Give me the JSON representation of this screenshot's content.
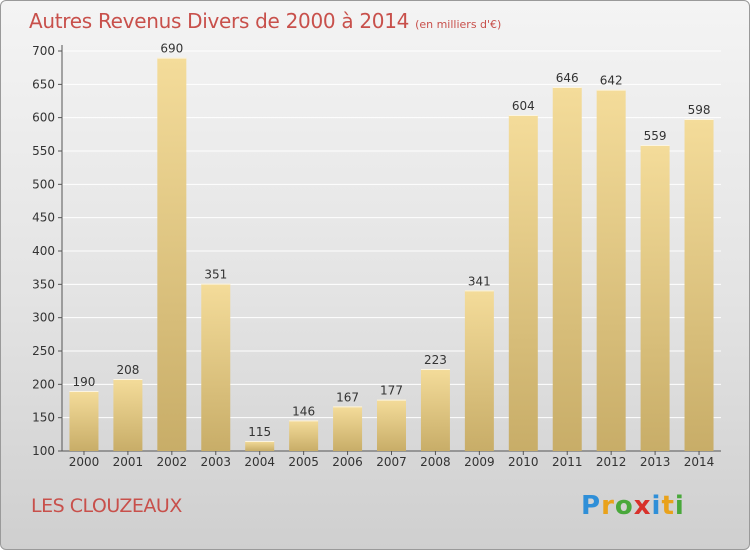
{
  "title": "Autres Revenus Divers de 2000 à 2014",
  "unit_label": "(en milliers d'€)",
  "commune": "LES CLOUZEAUX",
  "logo": {
    "text": "Proxiti",
    "letters": [
      {
        "ch": "P",
        "color": "#2f8fd8"
      },
      {
        "ch": "r",
        "color": "#e9a21b"
      },
      {
        "ch": "o",
        "color": "#49a83b"
      },
      {
        "ch": "x",
        "color": "#d8312b"
      },
      {
        "ch": "i",
        "color": "#2f8fd8"
      },
      {
        "ch": "t",
        "color": "#e9a21b"
      },
      {
        "ch": "i",
        "color": "#49a83b"
      }
    ]
  },
  "colors": {
    "title": "#c8504b",
    "bar_top": "#f4dc9a",
    "bar_bottom": "#c8ad68",
    "grid": "#ffffff",
    "axis_text": "#333333"
  },
  "chart_data": {
    "type": "bar",
    "categories": [
      "2000",
      "2001",
      "2002",
      "2003",
      "2004",
      "2005",
      "2006",
      "2007",
      "2008",
      "2009",
      "2010",
      "2011",
      "2012",
      "2013",
      "2014"
    ],
    "values": [
      190,
      208,
      690,
      351,
      115,
      146,
      167,
      177,
      223,
      341,
      604,
      646,
      642,
      559,
      598
    ],
    "ylim": [
      100,
      700
    ],
    "yticks": [
      100,
      150,
      200,
      250,
      300,
      350,
      400,
      450,
      500,
      550,
      600,
      650,
      700
    ],
    "grid": true,
    "data_labels": true
  }
}
